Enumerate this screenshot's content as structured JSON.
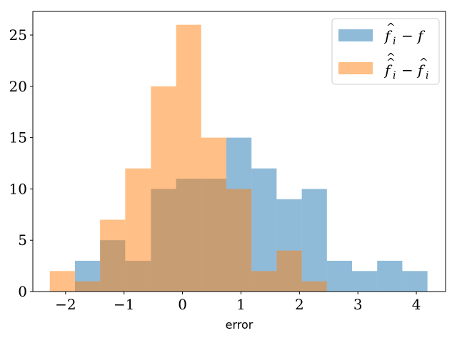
{
  "chart_data": {
    "type": "bar",
    "xlabel": "error",
    "ylabel": "",
    "xlim": [
      -2.56,
      4.5
    ],
    "ylim": [
      0,
      27.3
    ],
    "xticks": [
      -2,
      -1,
      0,
      1,
      2,
      3,
      4
    ],
    "xtick_labels": [
      "−2",
      "−1",
      "0",
      "1",
      "2",
      "3",
      "4"
    ],
    "yticks": [
      0,
      5,
      10,
      15,
      20,
      25
    ],
    "ytick_labels": [
      "0",
      "5",
      "10",
      "15",
      "20",
      "25"
    ],
    "legend_position": "upper right",
    "series": [
      {
        "name": "f̂_i − f",
        "color": "#1f77b4",
        "alpha": 0.5,
        "edges": [
          -1.84,
          -1.41,
          -0.98,
          -0.54,
          -0.11,
          0.32,
          0.75,
          1.18,
          1.61,
          2.04,
          2.47,
          2.9,
          3.33,
          3.76,
          4.19
        ],
        "values": [
          3,
          5,
          3,
          10,
          11,
          11,
          15,
          12,
          9,
          10,
          3,
          2,
          3,
          2
        ]
      },
      {
        "name": "f̂̂_i − f̂_i",
        "color": "#ff7f0e",
        "alpha": 0.5,
        "edges": [
          -2.27,
          -1.84,
          -1.41,
          -0.98,
          -0.54,
          -0.11,
          0.32,
          0.75,
          1.18,
          1.61,
          2.04,
          2.47
        ],
        "values": [
          2,
          1,
          7,
          12,
          20,
          26,
          15,
          10,
          2,
          4,
          1
        ]
      }
    ]
  }
}
